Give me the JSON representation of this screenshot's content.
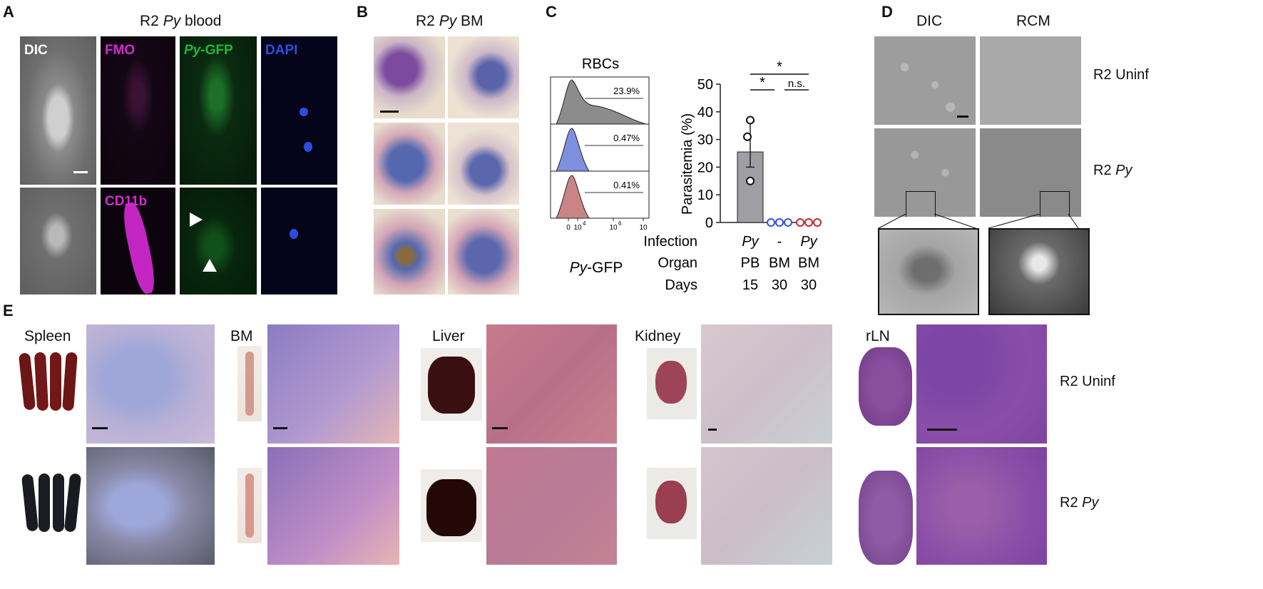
{
  "panelA": {
    "letter": "A",
    "title_prefix": "R2 ",
    "title_italic": "Py",
    "title_suffix": " blood",
    "labels": {
      "dic": "DIC",
      "fmo": "FMO",
      "py_italic": "Py",
      "gfp": "-GFP",
      "dapi": "DAPI",
      "cd11b": "CD11b"
    },
    "colors": {
      "fmo": "#d12bd1",
      "gfp": "#1fb83a",
      "dapi": "#2a4fe0"
    }
  },
  "panelB": {
    "letter": "B",
    "title_prefix": "R2 ",
    "title_italic": "Py",
    "title_suffix": " BM"
  },
  "panelC": {
    "letter": "C",
    "hist_title": "RBCs",
    "hist_percent": [
      "23.9%",
      "0.47%",
      "0.41%"
    ],
    "hist_colors": [
      "#8c8c8c",
      "#7f8fe0",
      "#c98585"
    ],
    "hist_xticks": [
      "0",
      "10",
      "10",
      "10"
    ],
    "hist_xticks_exp": [
      "",
      "4",
      "6",
      ""
    ],
    "hist_xlabel_italic": "Py",
    "hist_xlabel_suffix": "-GFP",
    "sig_top": "*",
    "sig_left": "*",
    "sig_right": "n.s.",
    "rows": {
      "infection_label": "Infection",
      "organ_label": "Organ",
      "days_label": "Days",
      "infection": [
        "Py",
        "-",
        "Py"
      ],
      "organ": [
        "PB",
        "BM",
        "BM"
      ],
      "days": [
        "15",
        "30",
        "30"
      ]
    },
    "chart_data": {
      "type": "bar",
      "categories": [
        "PB Py d15",
        "BM - d30",
        "BM Py d30"
      ],
      "values": [
        25.5,
        0,
        0
      ],
      "error": [
        [
          20,
          36.5
        ],
        [
          0,
          0
        ],
        [
          0,
          0
        ]
      ],
      "points": [
        [
          37,
          31,
          15
        ],
        [
          0,
          0,
          0
        ],
        [
          0,
          0,
          0
        ]
      ],
      "point_colors": [
        "#111111",
        "#3a4fe0",
        "#c62828"
      ],
      "bar_color": "#9e9ea3",
      "ylabel": "Parasitemia (%)",
      "ylim": [
        0,
        50
      ],
      "yticks": [
        0,
        10,
        20,
        30,
        40,
        50
      ]
    }
  },
  "panelD": {
    "letter": "D",
    "col_titles": [
      "DIC",
      "RCM"
    ],
    "row_labels": [
      "R2 Uninf",
      "R2 "
    ],
    "row2_italic": "Py"
  },
  "panelE": {
    "letter": "E",
    "organs": [
      "Spleen",
      "BM",
      "Liver",
      "Kidney",
      "rLN"
    ],
    "row_labels": [
      "R2 Uninf",
      "R2 "
    ],
    "row2_italic": "Py"
  }
}
